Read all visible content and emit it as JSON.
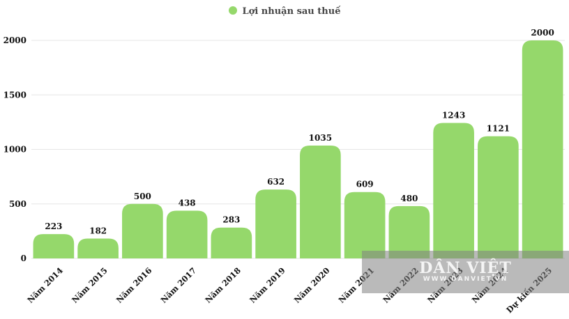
{
  "legend": {
    "label": "Lợi nhuận sau thuế"
  },
  "watermark": {
    "logo": "DÂN VIỆT",
    "url": "WWW.DANVIET.VN"
  },
  "colors": {
    "bar": "#95d86b",
    "grid": "#e6e6e6",
    "text": "#111111"
  },
  "chart_data": {
    "type": "bar",
    "categories": [
      "Năm 2014",
      "Năm 2015",
      "Năm 2016",
      "Năm 2017",
      "Năm 2018",
      "Năm 2019",
      "Năm 2020",
      "Năm 2021",
      "Năm 2022",
      "Năm 2023",
      "Năm 2024",
      "Dự kiến 2025"
    ],
    "series": [
      {
        "name": "Lợi nhuận sau thuế",
        "values": [
          223,
          182,
          500,
          438,
          283,
          632,
          1035,
          609,
          480,
          1243,
          1121,
          2000
        ]
      }
    ],
    "ylim": [
      0,
      2000
    ],
    "yticks": [
      0,
      500,
      1000,
      1500,
      2000
    ],
    "grid": true,
    "legend_position": "top-center",
    "title": "",
    "xlabel": "",
    "ylabel": ""
  }
}
